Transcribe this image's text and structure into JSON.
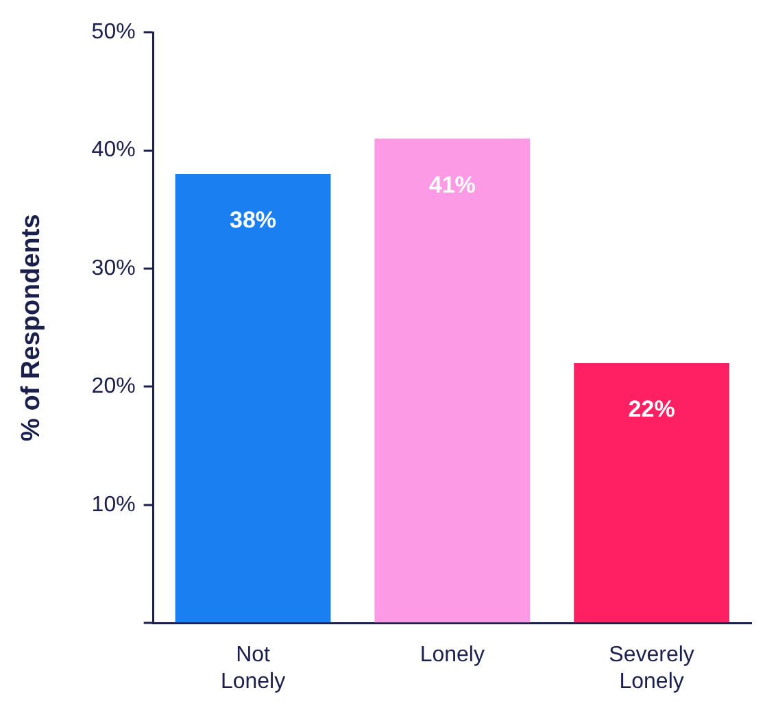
{
  "chart_data": {
    "type": "bar",
    "ylabel": "% of Respondents",
    "categories": [
      "Not Lonely",
      "Lonely",
      "Severely Lonely"
    ],
    "values": [
      38,
      41,
      22
    ],
    "colors": [
      "#1a7ff0",
      "#fd9ae6",
      "#fe2063"
    ],
    "value_labels": [
      "38%",
      "41%",
      "22%"
    ],
    "ylim": [
      0,
      50
    ],
    "yticks": [
      {
        "value": 0,
        "label": null
      },
      {
        "value": 10,
        "label": "10%"
      },
      {
        "value": 20,
        "label": "20%"
      },
      {
        "value": 30,
        "label": "30%"
      },
      {
        "value": 40,
        "label": "40%"
      },
      {
        "value": 50,
        "label": "50%"
      }
    ],
    "grid": false,
    "legend": false
  }
}
